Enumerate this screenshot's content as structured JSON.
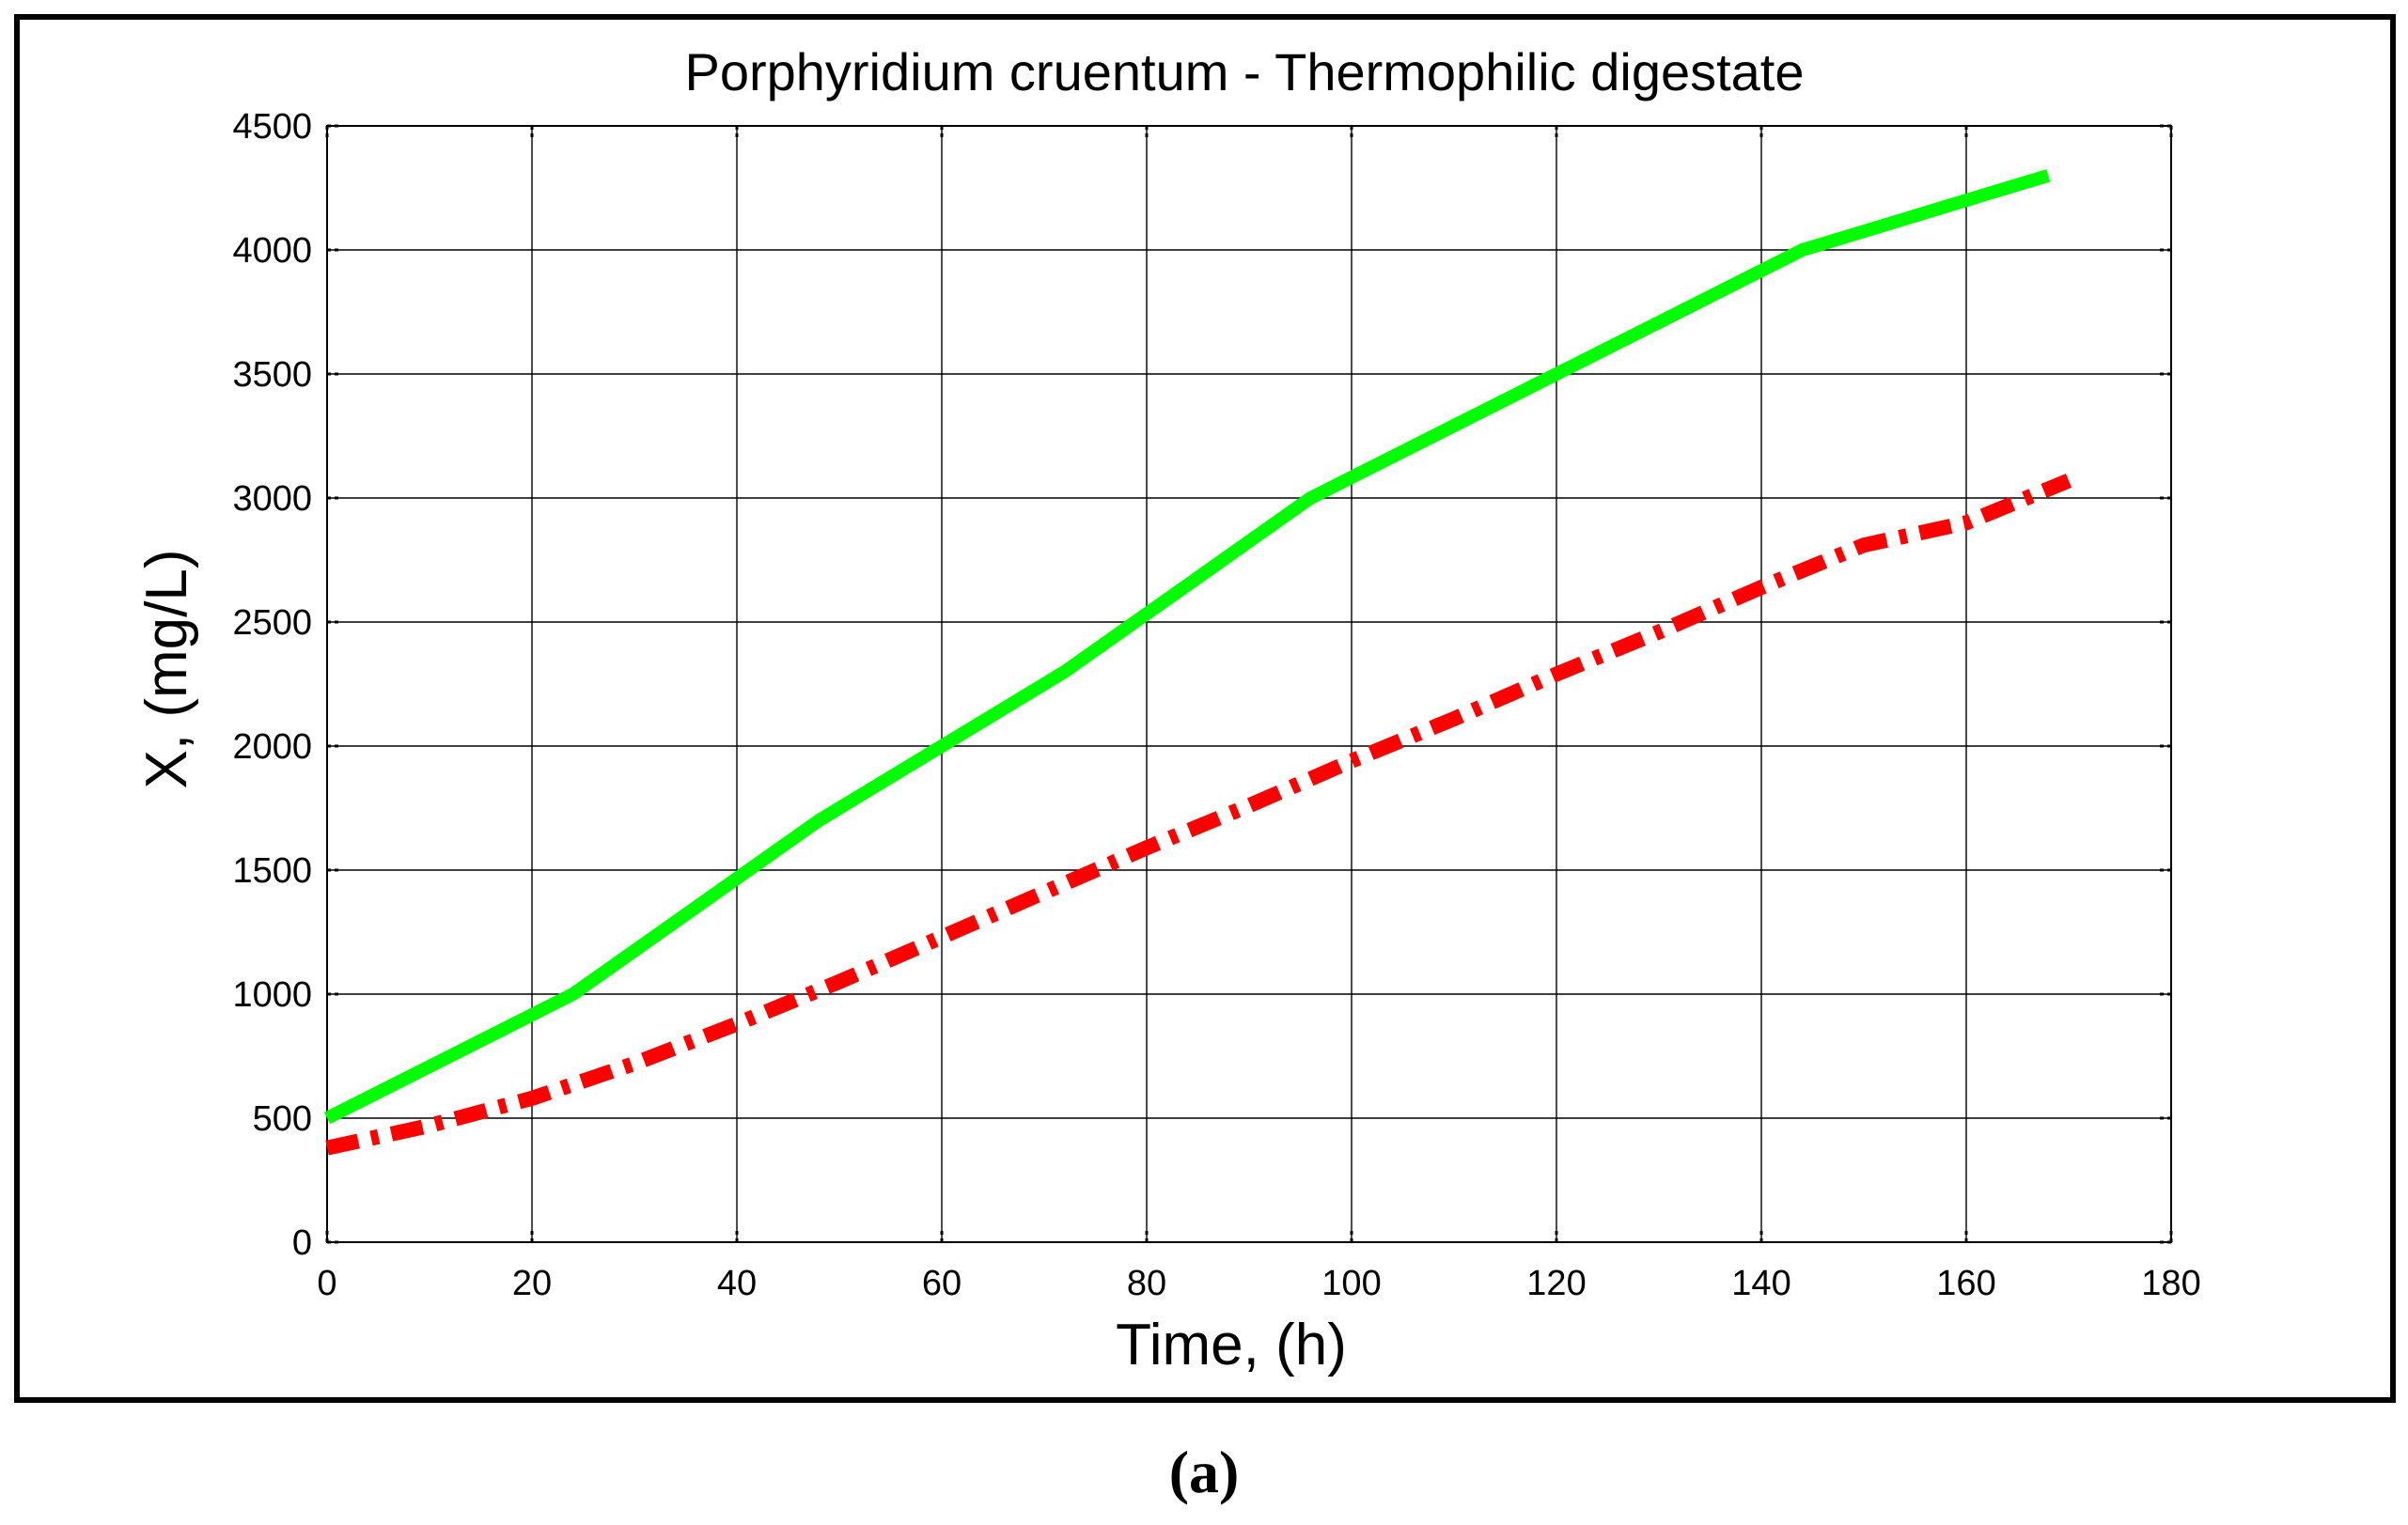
{
  "chart_data": {
    "type": "line",
    "title": "Porphyridium cruentum - Thermophilic digestate",
    "xlabel": "Time, (h)",
    "ylabel": "X, (mg/L)",
    "xlim": [
      0,
      180
    ],
    "ylim": [
      0,
      4500
    ],
    "xticks": [
      0,
      20,
      40,
      60,
      80,
      100,
      120,
      140,
      160,
      180
    ],
    "yticks": [
      0,
      500,
      1000,
      1500,
      2000,
      2500,
      3000,
      3500,
      4000,
      4500
    ],
    "grid": true,
    "legend": "none",
    "series": [
      {
        "color": "#00ff00",
        "style": "solid",
        "x": [
          0,
          24,
          48,
          72,
          96,
          120,
          144,
          168
        ],
        "y": [
          500,
          1000,
          1700,
          2300,
          3000,
          3500,
          4000,
          4300
        ]
      },
      {
        "color": "#ff0000",
        "style": "dash-dot",
        "x": [
          0,
          10,
          20,
          30,
          40,
          50,
          60,
          70,
          80,
          90,
          100,
          110,
          120,
          130,
          140,
          150,
          160,
          170
        ],
        "y": [
          380,
          470,
          580,
          720,
          880,
          1050,
          1230,
          1410,
          1590,
          1760,
          1940,
          2110,
          2290,
          2460,
          2640,
          2810,
          2900,
          3070
        ]
      }
    ]
  },
  "panel_label": "(a)"
}
